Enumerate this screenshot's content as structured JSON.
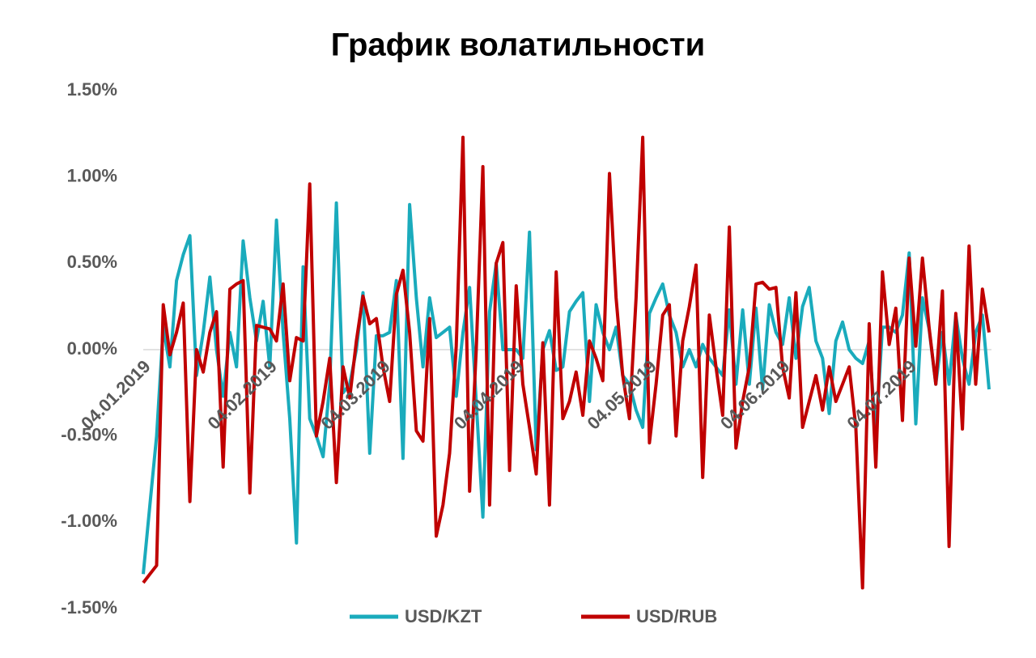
{
  "chart_data": {
    "type": "line",
    "title": "График волатильности",
    "categories": [
      "04.01.2019",
      null,
      null,
      null,
      null,
      null,
      null,
      null,
      null,
      null,
      null,
      null,
      null,
      null,
      null,
      null,
      null,
      null,
      null,
      "04.02.2019",
      null,
      null,
      null,
      null,
      null,
      null,
      null,
      null,
      null,
      null,
      null,
      null,
      null,
      null,
      null,
      null,
      "04.03.2019",
      null,
      null,
      null,
      null,
      null,
      null,
      null,
      null,
      null,
      null,
      null,
      null,
      null,
      null,
      null,
      null,
      null,
      null,
      null,
      "04.04.2019",
      null,
      null,
      null,
      null,
      null,
      null,
      null,
      null,
      null,
      null,
      null,
      null,
      null,
      null,
      null,
      null,
      null,
      null,
      null,
      "04.05.2019",
      null,
      null,
      null,
      null,
      null,
      null,
      null,
      null,
      null,
      null,
      null,
      null,
      null,
      null,
      null,
      null,
      null,
      null,
      null,
      "04.06.2019",
      null,
      null,
      null,
      null,
      null,
      null,
      null,
      null,
      null,
      null,
      null,
      null,
      null,
      null,
      null,
      null,
      null,
      null,
      "04.07.2019",
      null,
      null,
      null,
      null,
      null,
      null,
      null,
      null,
      null,
      null,
      null,
      null
    ],
    "series": [
      {
        "name": "USD/KZT",
        "color": "#1aabbc",
        "values": [
          -1.3,
          -0.9,
          -0.5,
          0.13,
          -0.1,
          0.4,
          0.55,
          0.66,
          -0.15,
          0.1,
          0.42,
          0.0,
          -0.27,
          0.1,
          -0.1,
          0.63,
          0.3,
          0.05,
          0.28,
          -0.1,
          0.75,
          0.1,
          -0.4,
          -1.12,
          0.48,
          -0.4,
          -0.5,
          -0.62,
          -0.2,
          0.85,
          -0.25,
          -0.2,
          0.0,
          0.33,
          -0.6,
          0.08,
          0.08,
          0.1,
          0.4,
          -0.63,
          0.84,
          0.3,
          -0.1,
          0.3,
          0.07,
          0.1,
          0.13,
          -0.27,
          0.1,
          0.36,
          -0.3,
          -0.97,
          0.22,
          0.5,
          0.0,
          0.0,
          0.0,
          -0.05,
          0.68,
          -0.58,
          0.0,
          0.11,
          -0.12,
          -0.1,
          0.22,
          0.28,
          0.33,
          -0.3,
          0.26,
          0.1,
          0.0,
          0.13,
          -0.15,
          -0.2,
          -0.35,
          -0.45,
          0.21,
          0.3,
          0.38,
          0.2,
          0.1,
          -0.1,
          0.0,
          -0.1,
          0.03,
          -0.05,
          -0.1,
          -0.15,
          0.23,
          -0.2,
          0.23,
          -0.2,
          0.24,
          -0.23,
          0.26,
          0.1,
          0.03,
          0.3,
          -0.05,
          0.25,
          0.36,
          0.05,
          -0.05,
          -0.37,
          0.05,
          0.16,
          0.0,
          -0.05,
          -0.08,
          0.05,
          -0.5,
          0.13,
          0.13,
          0.1,
          0.2,
          0.56,
          -0.43,
          0.3,
          0.12,
          -0.2,
          0.1,
          -0.2,
          0.2,
          -0.05,
          -0.2,
          0.1,
          0.2,
          -0.23
        ]
      },
      {
        "name": "USD/RUB",
        "color": "#c00000",
        "values": [
          -1.35,
          -1.3,
          -1.25,
          0.26,
          -0.03,
          0.1,
          0.27,
          -0.88,
          0.0,
          -0.13,
          0.1,
          0.22,
          -0.68,
          0.35,
          0.38,
          0.4,
          -0.83,
          0.14,
          0.13,
          0.12,
          0.05,
          0.38,
          -0.18,
          0.07,
          0.05,
          0.96,
          -0.5,
          -0.3,
          -0.05,
          -0.77,
          -0.1,
          -0.28,
          0.05,
          0.31,
          0.15,
          0.18,
          -0.1,
          -0.3,
          0.32,
          0.46,
          0.1,
          -0.47,
          -0.53,
          0.18,
          -1.08,
          -0.9,
          -0.6,
          0.02,
          1.23,
          -0.82,
          0.0,
          1.06,
          -0.9,
          0.5,
          0.62,
          -0.7,
          0.37,
          -0.2,
          -0.45,
          -0.72,
          0.04,
          -0.9,
          0.45,
          -0.4,
          -0.3,
          -0.13,
          -0.38,
          0.05,
          -0.05,
          -0.18,
          1.02,
          0.3,
          -0.15,
          -0.4,
          0.3,
          1.23,
          -0.54,
          -0.2,
          0.2,
          0.26,
          -0.5,
          0.05,
          0.25,
          0.49,
          -0.74,
          0.2,
          -0.1,
          -0.38,
          0.71,
          -0.57,
          -0.3,
          -0.1,
          0.38,
          0.39,
          0.35,
          0.36,
          -0.1,
          -0.28,
          0.33,
          -0.45,
          -0.3,
          -0.15,
          -0.35,
          -0.1,
          -0.3,
          -0.2,
          -0.1,
          -0.45,
          -1.38,
          0.15,
          -0.68,
          0.45,
          0.03,
          0.24,
          -0.41,
          0.53,
          0.02,
          0.53,
          0.13,
          -0.2,
          0.34,
          -1.14,
          0.21,
          -0.46,
          0.6,
          -0.2,
          0.35,
          0.1
        ]
      }
    ],
    "ylim": [
      -1.5,
      1.5
    ],
    "yticks": [
      {
        "value": -1.5,
        "label": "-1.50%"
      },
      {
        "value": -1.0,
        "label": "-1.00%"
      },
      {
        "value": -0.5,
        "label": "-0.50%"
      },
      {
        "value": 0,
        "label": "0.00%"
      },
      {
        "value": 0.5,
        "label": "0.50%"
      },
      {
        "value": 1.0,
        "label": "1.00%"
      },
      {
        "value": 1.5,
        "label": "1.50%"
      }
    ],
    "grid": false,
    "legend": "bottom"
  }
}
